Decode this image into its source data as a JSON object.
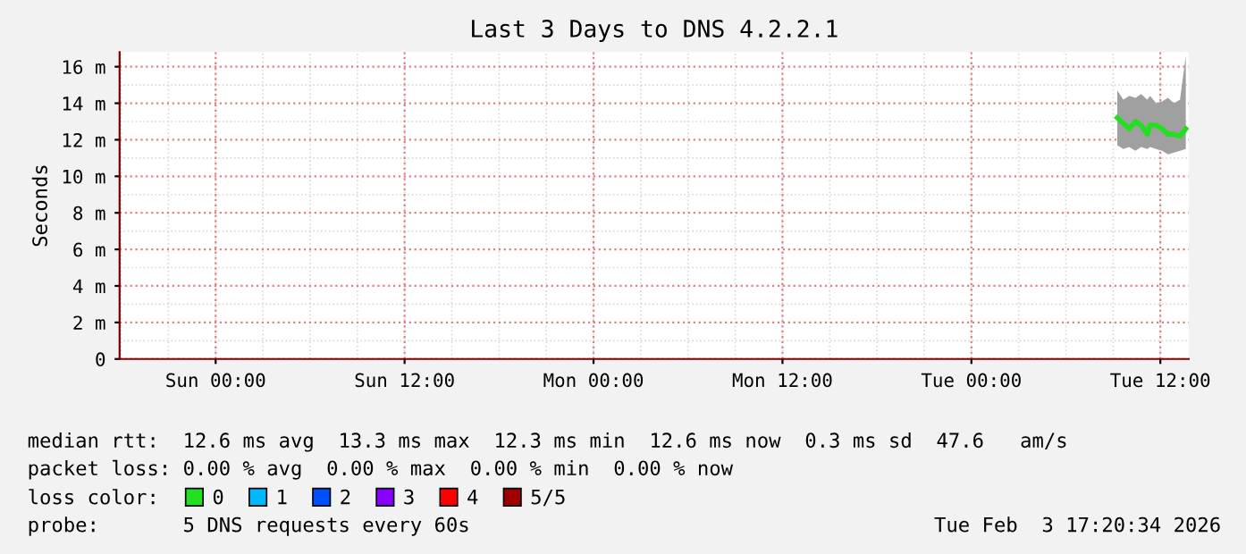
{
  "chart_data": {
    "type": "line",
    "title": "Last 3 Days to DNS 4.2.2.1",
    "ylabel": "Seconds",
    "x": [
      "2026-02-03T09:16",
      "2026-02-03T09:39",
      "2026-02-03T10:02",
      "2026-02-03T10:25",
      "2026-02-03T10:47",
      "2026-02-03T11:10",
      "2026-02-03T11:21",
      "2026-02-03T11:44",
      "2026-02-03T12:07",
      "2026-02-03T12:29",
      "2026-02-03T12:52",
      "2026-02-03T13:15",
      "2026-02-03T13:37"
    ],
    "series": [
      {
        "name": "0",
        "color": "#20e020",
        "values": [
          13.2,
          12.9,
          12.6,
          13.0,
          12.8,
          12.3,
          12.8,
          12.8,
          12.6,
          12.3,
          12.3,
          12.2,
          12.6
        ],
        "upper": [
          14.7,
          14.2,
          14.4,
          14.3,
          14.5,
          14.2,
          14.4,
          14.0,
          14.1,
          14.3,
          14.0,
          14.2,
          16.6
        ],
        "lower": [
          11.7,
          11.5,
          11.6,
          11.4,
          11.6,
          11.5,
          11.6,
          11.5,
          11.4,
          11.2,
          11.3,
          11.4,
          11.5
        ]
      },
      {
        "name": "1",
        "color": "#00b8ff",
        "values": [
          null,
          null,
          null,
          null,
          null,
          null,
          null,
          null,
          null,
          null,
          null,
          null,
          null
        ]
      },
      {
        "name": "2",
        "color": "#0050ff",
        "values": [
          null,
          null,
          null,
          null,
          null,
          null,
          null,
          null,
          null,
          null,
          null,
          null,
          null
        ]
      },
      {
        "name": "3",
        "color": "#8a00ff",
        "values": [
          null,
          null,
          null,
          null,
          null,
          null,
          null,
          null,
          null,
          null,
          null,
          null,
          null
        ]
      },
      {
        "name": "4",
        "color": "#ff0000",
        "values": [
          null,
          null,
          null,
          null,
          null,
          null,
          null,
          null,
          null,
          null,
          null,
          null,
          null
        ]
      },
      {
        "name": "5/5",
        "color": "#a00000",
        "values": [
          null,
          null,
          null,
          null,
          null,
          null,
          null,
          null,
          null,
          null,
          null,
          null,
          null
        ]
      }
    ],
    "legend_title": "loss color:",
    "legend": "bottom",
    "grid": true,
    "xlim": [
      "2026-01-31T17:54",
      "2026-02-03T13:48"
    ],
    "xticks": [
      {
        "value": "2026-02-01T00:00",
        "label": "Sun 00:00"
      },
      {
        "value": "2026-02-01T12:00",
        "label": "Sun 12:00"
      },
      {
        "value": "2026-02-02T00:00",
        "label": "Mon 00:00"
      },
      {
        "value": "2026-02-02T12:00",
        "label": "Mon 12:00"
      },
      {
        "value": "2026-02-03T00:00",
        "label": "Tue 00:00"
      },
      {
        "value": "2026-02-03T12:00",
        "label": "Tue 12:00"
      }
    ],
    "ylim": [
      0,
      16.8
    ],
    "yticks": [
      0,
      {
        "value": 2,
        "label": "2 m"
      },
      {
        "value": 4,
        "label": "4 m"
      },
      {
        "value": 6,
        "label": "6 m"
      },
      {
        "value": 8,
        "label": "8 m"
      },
      {
        "value": 10,
        "label": "10 m"
      },
      {
        "value": 12,
        "label": "12 m"
      },
      {
        "value": 14,
        "label": "14 m"
      },
      {
        "value": 16,
        "label": "16 m"
      }
    ],
    "annotations": [
      "median rtt:  12.6 ms avg  13.3 ms max  12.3 ms min  12.6 ms now  0.3 ms sd  47.6   am/s",
      "packet loss: 0.00 % avg  0.00 % max  0.00 % min  0.00 % now",
      "probe:       5 DNS requests every 60s",
      "Tue Feb  3 17:20:34 2026"
    ]
  }
}
